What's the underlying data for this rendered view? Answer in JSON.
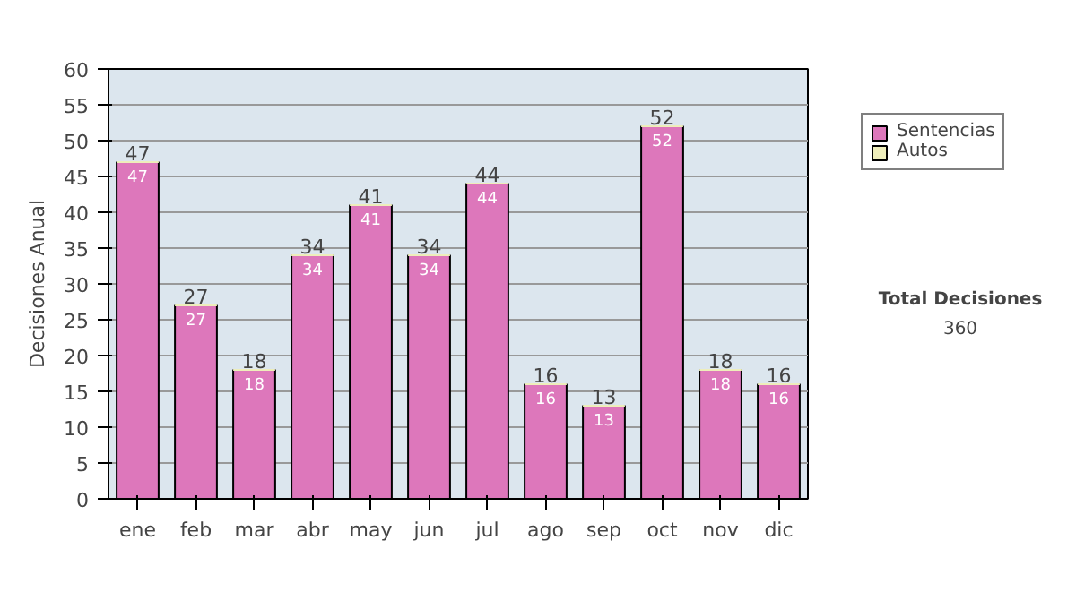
{
  "chart_data": {
    "type": "bar",
    "ylabel": "Decisiones Anual",
    "categories": [
      "ene",
      "feb",
      "mar",
      "abr",
      "may",
      "jun",
      "jul",
      "ago",
      "sep",
      "oct",
      "nov",
      "dic"
    ],
    "series": [
      {
        "name": "Sentencias",
        "color": "#dd77bb",
        "values": [
          47,
          27,
          18,
          34,
          41,
          34,
          44,
          16,
          13,
          52,
          18,
          16
        ],
        "value_labels": [
          "47",
          "27",
          "18",
          "34",
          "41",
          "34",
          "44",
          "16",
          "13",
          "52",
          "18",
          "16"
        ]
      },
      {
        "name": "Autos",
        "color": "#eeeebb",
        "values": [
          0,
          0,
          0,
          0,
          0,
          0,
          0,
          0,
          0,
          0,
          0,
          0
        ]
      }
    ],
    "stacked": true,
    "totals": [
      "47",
      "27",
      "18",
      "34",
      "41",
      "34",
      "44",
      "16",
      "13",
      "52",
      "18",
      "16"
    ],
    "ylim": [
      0,
      60
    ],
    "yticks": [
      0,
      5,
      10,
      15,
      20,
      25,
      30,
      35,
      40,
      45,
      50,
      55,
      60
    ],
    "grid": "y",
    "legend": "right",
    "annotations": [
      "Total Decisiones",
      "360"
    ]
  }
}
